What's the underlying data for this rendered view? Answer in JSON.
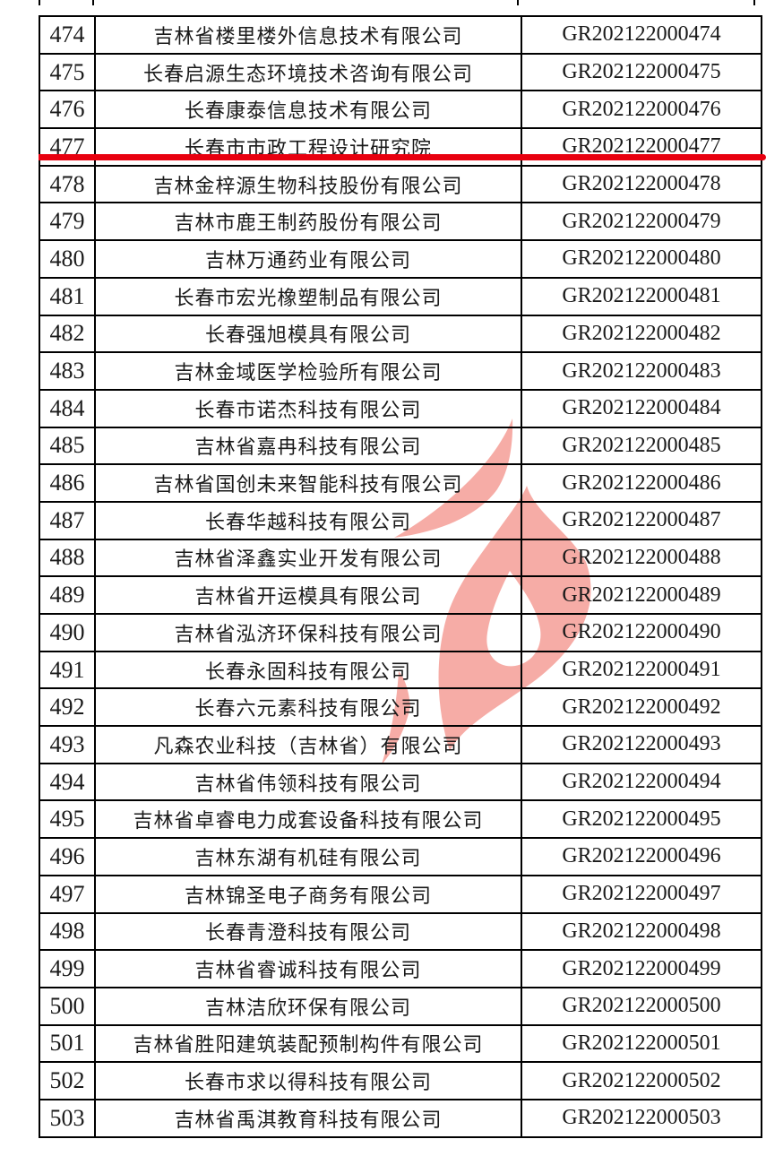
{
  "table": {
    "columns": [
      "serial-number",
      "company-name",
      "certificate-code"
    ],
    "rows": [
      {
        "num": "474",
        "name": "吉林省楼里楼外信息技术有限公司",
        "code": "GR202122000474"
      },
      {
        "num": "475",
        "name": "长春启源生态环境技术咨询有限公司",
        "code": "GR202122000475"
      },
      {
        "num": "476",
        "name": "长春康泰信息技术有限公司",
        "code": "GR202122000476"
      },
      {
        "num": "477",
        "name": "长春市市政工程设计研究院",
        "code": "GR202122000477"
      },
      {
        "num": "478",
        "name": "吉林金梓源生物科技股份有限公司",
        "code": "GR202122000478"
      },
      {
        "num": "479",
        "name": "吉林市鹿王制药股份有限公司",
        "code": "GR202122000479"
      },
      {
        "num": "480",
        "name": "吉林万通药业有限公司",
        "code": "GR202122000480"
      },
      {
        "num": "481",
        "name": "长春市宏光橡塑制品有限公司",
        "code": "GR202122000481"
      },
      {
        "num": "482",
        "name": "长春强旭模具有限公司",
        "code": "GR202122000482"
      },
      {
        "num": "483",
        "name": "吉林金域医学检验所有限公司",
        "code": "GR202122000483"
      },
      {
        "num": "484",
        "name": "长春市诺杰科技有限公司",
        "code": "GR202122000484"
      },
      {
        "num": "485",
        "name": "吉林省嘉冉科技有限公司",
        "code": "GR202122000485"
      },
      {
        "num": "486",
        "name": "吉林省国创未来智能科技有限公司",
        "code": "GR202122000486"
      },
      {
        "num": "487",
        "name": "长春华越科技有限公司",
        "code": "GR202122000487"
      },
      {
        "num": "488",
        "name": "吉林省泽鑫实业开发有限公司",
        "code": "GR202122000488"
      },
      {
        "num": "489",
        "name": "吉林省开运模具有限公司",
        "code": "GR202122000489"
      },
      {
        "num": "490",
        "name": "吉林省泓济环保科技有限公司",
        "code": "GR202122000490"
      },
      {
        "num": "491",
        "name": "长春永固科技有限公司",
        "code": "GR202122000491"
      },
      {
        "num": "492",
        "name": "长春六元素科技有限公司",
        "code": "GR202122000492"
      },
      {
        "num": "493",
        "name": "凡森农业科技（吉林省）有限公司",
        "code": "GR202122000493"
      },
      {
        "num": "494",
        "name": "吉林省伟领科技有限公司",
        "code": "GR202122000494"
      },
      {
        "num": "495",
        "name": "吉林省卓睿电力成套设备科技有限公司",
        "code": "GR202122000495"
      },
      {
        "num": "496",
        "name": "吉林东湖有机硅有限公司",
        "code": "GR202122000496"
      },
      {
        "num": "497",
        "name": "吉林锦圣电子商务有限公司",
        "code": "GR202122000497"
      },
      {
        "num": "498",
        "name": "长春青澄科技有限公司",
        "code": "GR202122000498"
      },
      {
        "num": "499",
        "name": "吉林省睿诚科技有限公司",
        "code": "GR202122000499"
      },
      {
        "num": "500",
        "name": "吉林洁欣环保有限公司",
        "code": "GR202122000500"
      },
      {
        "num": "501",
        "name": "吉林省胜阳建筑装配预制构件有限公司",
        "code": "GR202122000501"
      },
      {
        "num": "502",
        "name": "长春市求以得科技有限公司",
        "code": "GR202122000502"
      },
      {
        "num": "503",
        "name": "吉林省禹淇教育科技有限公司",
        "code": "GR202122000503"
      }
    ]
  },
  "highlight": {
    "row_num": "477",
    "color": "#e8000f"
  },
  "watermark": {
    "icon": "red-flame-watermark",
    "color": "#f6aca6"
  },
  "colors": {
    "border": "#000000",
    "text": "#1a1a1a",
    "background": "#ffffff"
  }
}
